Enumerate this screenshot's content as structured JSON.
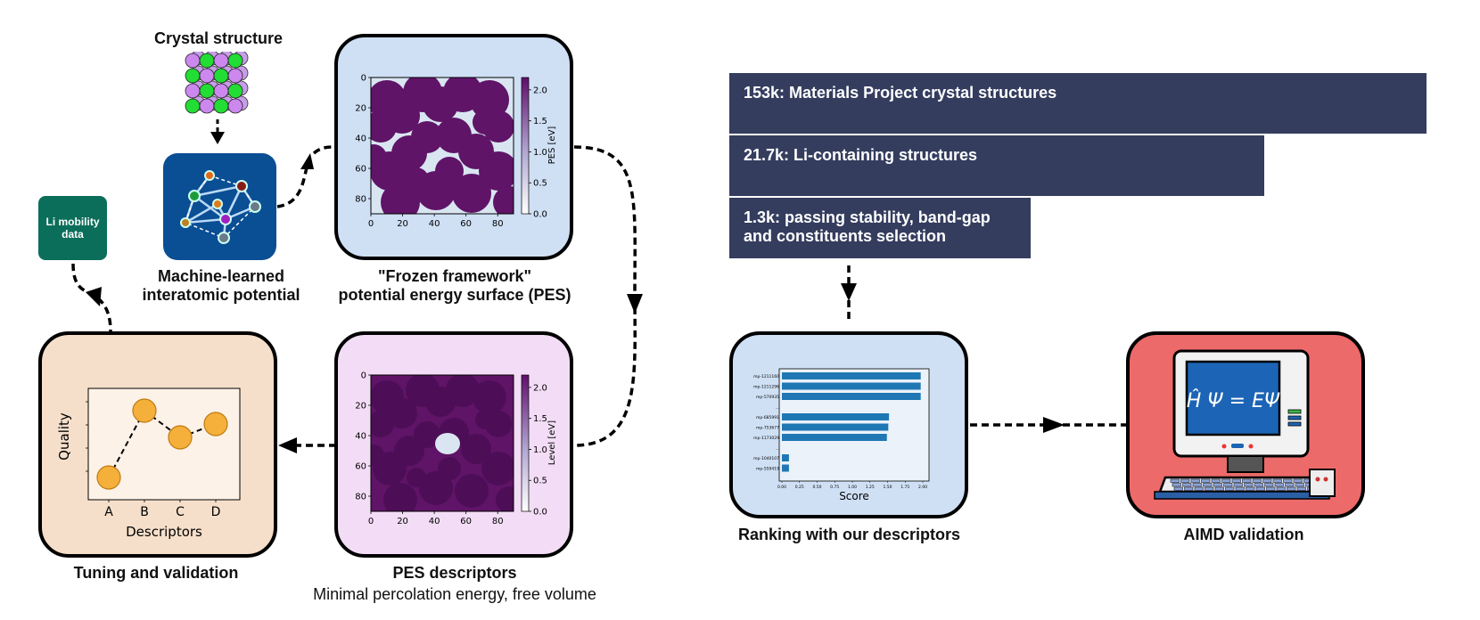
{
  "crystal": {
    "label": "Crystal structure"
  },
  "mlp": {
    "label_line1": "Machine-learned",
    "label_line2": "interatomic potential"
  },
  "li_mobility": {
    "line1": "Li mobility",
    "line2": "data"
  },
  "pes_panel": {
    "label_line1": "\"Frozen framework\"",
    "label_line2": "potential energy surface (PES)",
    "x_ticks": [
      "0",
      "20",
      "40",
      "60",
      "80"
    ],
    "y_ticks": [
      "0",
      "20",
      "40",
      "60",
      "80"
    ],
    "cbar_ticks": [
      "0.0",
      "0.5",
      "1.0",
      "1.5",
      "2.0"
    ],
    "cbar_label": "PES [eV]"
  },
  "descriptor_panel": {
    "label_line1": "PES descriptors",
    "label_line2": "Minimal percolation energy, free volume",
    "x_ticks": [
      "0",
      "20",
      "40",
      "60",
      "80"
    ],
    "y_ticks": [
      "0",
      "20",
      "40",
      "60",
      "80"
    ],
    "cbar_ticks": [
      "0.0",
      "0.5",
      "1.0",
      "1.5",
      "2.0"
    ],
    "cbar_label": "Level [eV]"
  },
  "tuning_panel": {
    "label": "Tuning and validation",
    "chart_data": {
      "type": "line",
      "categories": [
        "A",
        "B",
        "C",
        "D"
      ],
      "values": [
        1,
        4,
        2.8,
        3.4
      ],
      "xlabel": "Descriptors",
      "ylabel": "Quality"
    }
  },
  "funnel": [
    {
      "text": "153k: Materials Project crystal structures"
    },
    {
      "text": "21.7k: Li-containing structures"
    },
    {
      "line1": "1.3k: passing stability, band-gap",
      "line2": "and constituents selection"
    }
  ],
  "ranking_panel": {
    "label": "Ranking with our descriptors",
    "chart_data": {
      "type": "bar",
      "orientation": "horizontal",
      "categories": [
        "mp-1211160",
        "mp-1211296",
        "mp-570935",
        "...",
        "mp-685991",
        "mp-753677",
        "mp-1173029",
        "...",
        "mp-1040107",
        "mp-559419"
      ],
      "values": [
        1.97,
        1.97,
        1.97,
        null,
        1.52,
        1.51,
        1.49,
        null,
        0.1,
        0.1
      ],
      "x_ticks": [
        "0.00",
        "0.25",
        "0.50",
        "0.75",
        "1.00",
        "1.25",
        "1.50",
        "1.75",
        "2.00"
      ],
      "xlabel": "Score",
      "xlim": [
        0,
        2.05
      ]
    }
  },
  "aimd_panel": {
    "label": "AIMD validation",
    "equation": "Ĥ Ψ = EΨ"
  },
  "colors": {
    "pes_bg": "#cfe0f5",
    "descriptor_bg": "#f3ddf6",
    "tuning_bg": "#f6dfca",
    "ranking_bg": "#cfe0f5",
    "aimd_bg": "#ec6a69",
    "funnel": "#343d5e",
    "bar": "#1f77b4",
    "marker": "#f5b03c"
  }
}
